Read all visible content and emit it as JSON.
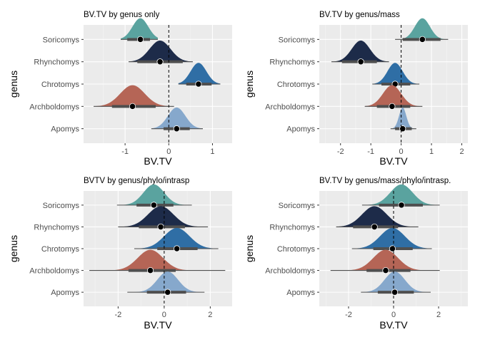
{
  "chart_data": [
    {
      "type": "ridge-interval",
      "title": "BV.TV by genus only",
      "xlabel": "BV.TV",
      "ylabel": "genus",
      "xlim": [
        -1.95,
        1.45
      ],
      "xticks": [
        -1,
        0,
        1
      ],
      "reference_line_x": 0,
      "categories": [
        "Soricomys",
        "Rhynchomys",
        "Chrotomys",
        "Archboldomys",
        "Apomys"
      ],
      "series": [
        {
          "category": "Soricomys",
          "color": "#5aa39f",
          "median": -0.65,
          "sd": 0.18,
          "q66": [
            -0.95,
            -0.43
          ],
          "q95": [
            -1.1,
            -0.25
          ]
        },
        {
          "category": "Rhynchomys",
          "color": "#1d2b49",
          "median": -0.2,
          "sd": 0.24,
          "q66": [
            -0.72,
            0.32
          ],
          "q95": [
            -0.92,
            0.55
          ]
        },
        {
          "category": "Chrotomys",
          "color": "#2f6ea5",
          "median": 0.68,
          "sd": 0.18,
          "q66": [
            0.4,
            0.98
          ],
          "q95": [
            0.22,
            1.18
          ]
        },
        {
          "category": "Archboldomys",
          "color": "#b56556",
          "median": -0.83,
          "sd": 0.28,
          "q66": [
            -1.3,
            -0.3
          ],
          "q95": [
            -1.72,
            0.12
          ]
        },
        {
          "category": "Apomys",
          "color": "#86a8cc",
          "median": 0.18,
          "sd": 0.2,
          "q66": [
            -0.12,
            0.48
          ],
          "q95": [
            -0.4,
            0.78
          ]
        }
      ]
    },
    {
      "type": "ridge-interval",
      "title": "BV.TV by genus/mass",
      "xlabel": "BV.TV",
      "ylabel": "genus",
      "xlim": [
        -2.7,
        2.2
      ],
      "xticks": [
        -2,
        -1,
        0,
        1,
        2
      ],
      "reference_line_x": 0,
      "categories": [
        "Soricomys",
        "Rhynchomys",
        "Chrotomys",
        "Archboldomys",
        "Apomys"
      ],
      "series": [
        {
          "category": "Soricomys",
          "color": "#5aa39f",
          "median": 0.7,
          "sd": 0.25,
          "q66": [
            0.05,
            1.3
          ],
          "q95": [
            -0.2,
            1.55
          ]
        },
        {
          "category": "Rhynchomys",
          "color": "#1d2b49",
          "median": -1.33,
          "sd": 0.3,
          "q66": [
            -1.95,
            -0.8
          ],
          "q95": [
            -2.3,
            -0.4
          ]
        },
        {
          "category": "Chrotomys",
          "color": "#2f6ea5",
          "median": -0.2,
          "sd": 0.25,
          "q66": [
            -0.65,
            0.3
          ],
          "q95": [
            -0.95,
            0.6
          ]
        },
        {
          "category": "Archboldomys",
          "color": "#b56556",
          "median": -0.3,
          "sd": 0.3,
          "q66": [
            -0.8,
            0.3
          ],
          "q95": [
            -1.2,
            0.7
          ]
        },
        {
          "category": "Apomys",
          "color": "#86a8cc",
          "median": 0.05,
          "sd": 0.12,
          "q66": [
            -0.2,
            0.35
          ],
          "q95": [
            -0.35,
            0.5
          ]
        }
      ]
    },
    {
      "type": "ridge-interval",
      "title": "BVTV by genus/phylo/intrasp",
      "xlabel": "BV.TV",
      "ylabel": "genus",
      "xlim": [
        -3.5,
        2.95
      ],
      "xticks": [
        -2,
        0,
        2
      ],
      "reference_line_x": 0,
      "categories": [
        "Soricomys",
        "Rhynchomys",
        "Chrotomys",
        "Archboldomys",
        "Apomys"
      ],
      "series": [
        {
          "category": "Soricomys",
          "color": "#5aa39f",
          "median": -0.45,
          "sd": 0.45,
          "q66": [
            -1.2,
            0.4
          ],
          "q95": [
            -2.05,
            1.2
          ]
        },
        {
          "category": "Rhynchomys",
          "color": "#1d2b49",
          "median": -0.15,
          "sd": 0.55,
          "q66": [
            -1.1,
            0.9
          ],
          "q95": [
            -2.0,
            1.9
          ]
        },
        {
          "category": "Chrotomys",
          "color": "#2f6ea5",
          "median": 0.55,
          "sd": 0.55,
          "q66": [
            -0.3,
            1.45
          ],
          "q95": [
            -1.3,
            2.35
          ]
        },
        {
          "category": "Archboldomys",
          "color": "#b56556",
          "median": -0.6,
          "sd": 0.55,
          "q66": [
            -1.55,
            0.5
          ],
          "q95": [
            -3.25,
            2.65
          ]
        },
        {
          "category": "Apomys",
          "color": "#86a8cc",
          "median": 0.15,
          "sd": 0.45,
          "q66": [
            -0.75,
            0.95
          ],
          "q95": [
            -1.6,
            1.75
          ]
        }
      ]
    },
    {
      "type": "ridge-interval",
      "title": "BV.TV by genus/mass/phylo/intrasp.",
      "xlabel": "BV.TV",
      "ylabel": "genus",
      "xlim": [
        -3.3,
        3.3
      ],
      "xticks": [
        -2,
        0,
        2
      ],
      "reference_line_x": 0,
      "categories": [
        "Soricomys",
        "Rhynchomys",
        "Chrotomys",
        "Archboldomys",
        "Apomys"
      ],
      "series": [
        {
          "category": "Soricomys",
          "color": "#5aa39f",
          "median": 0.35,
          "sd": 0.5,
          "q66": [
            -0.65,
            1.3
          ],
          "q95": [
            -1.4,
            2.05
          ]
        },
        {
          "category": "Rhynchomys",
          "color": "#1d2b49",
          "median": -0.85,
          "sd": 0.55,
          "q66": [
            -1.8,
            0.2
          ],
          "q95": [
            -2.55,
            1.1
          ]
        },
        {
          "category": "Chrotomys",
          "color": "#2f6ea5",
          "median": -0.05,
          "sd": 0.55,
          "q66": [
            -0.9,
            0.85
          ],
          "q95": [
            -1.85,
            1.7
          ]
        },
        {
          "category": "Archboldomys",
          "color": "#b56556",
          "median": -0.35,
          "sd": 0.55,
          "q66": [
            -1.2,
            0.75
          ],
          "q95": [
            -2.8,
            2.05
          ]
        },
        {
          "category": "Apomys",
          "color": "#86a8cc",
          "median": 0.05,
          "sd": 0.45,
          "q66": [
            -0.7,
            0.9
          ],
          "q95": [
            -1.45,
            1.65
          ]
        }
      ]
    }
  ]
}
